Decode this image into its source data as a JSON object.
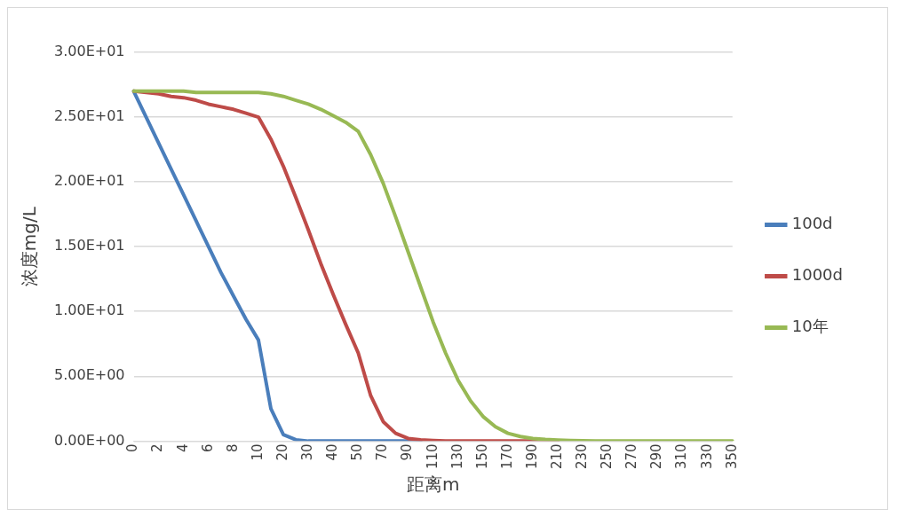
{
  "chart_data": {
    "type": "line",
    "xlabel": "距离m",
    "ylabel": "浓度mg/L",
    "categories": [
      "0",
      null,
      "2",
      null,
      "4",
      null,
      "6",
      null,
      "8",
      null,
      "10",
      null,
      "20",
      null,
      "30",
      null,
      "40",
      null,
      "50",
      null,
      "70",
      null,
      "90",
      null,
      "110",
      null,
      "130",
      null,
      "150",
      null,
      "170",
      null,
      "190",
      null,
      "210",
      null,
      "230",
      null,
      "250",
      null,
      "270",
      null,
      "290",
      null,
      "310",
      null,
      "330",
      null,
      "350"
    ],
    "series": [
      {
        "name": "100d",
        "color": "#4a7ebb",
        "values": [
          27,
          25,
          23,
          21,
          19,
          17,
          15,
          13,
          11.2,
          9.4,
          7.8,
          2.5,
          0.5,
          0.1,
          0,
          0,
          0,
          0,
          0,
          0,
          0,
          0,
          0,
          0,
          null,
          null,
          null,
          null,
          null,
          null,
          null,
          null,
          null,
          null,
          null,
          null,
          null,
          null,
          null,
          null,
          null,
          null,
          null,
          null,
          null,
          null,
          null,
          null,
          null
        ]
      },
      {
        "name": "1000d",
        "color": "#be4b48",
        "values": [
          27,
          26.9,
          26.8,
          26.6,
          26.5,
          26.3,
          26,
          25.8,
          25.6,
          25.3,
          25,
          23.3,
          21.2,
          18.8,
          16.3,
          13.7,
          11.3,
          9,
          6.8,
          3.5,
          1.5,
          0.6,
          0.2,
          0.1,
          0.05,
          0,
          0,
          0,
          0,
          0,
          0,
          0,
          0,
          0,
          0,
          null,
          null,
          null,
          null,
          null,
          null,
          null,
          null,
          null,
          null,
          null,
          null,
          null,
          null
        ]
      },
      {
        "name": "10年",
        "color": "#98b954",
        "values": [
          27,
          27,
          27,
          27,
          27,
          26.9,
          26.9,
          26.9,
          26.9,
          26.9,
          26.9,
          26.8,
          26.6,
          26.3,
          26,
          25.6,
          25.1,
          24.6,
          23.9,
          22.1,
          19.9,
          17.3,
          14.6,
          11.9,
          9.2,
          6.8,
          4.7,
          3.1,
          1.9,
          1.1,
          0.6,
          0.35,
          0.2,
          0.12,
          0.08,
          0.05,
          0.03,
          0,
          0,
          0,
          0,
          0,
          0,
          0,
          0,
          0,
          0,
          0,
          0
        ]
      }
    ],
    "ylim": [
      0,
      30
    ],
    "yticks": [
      {
        "value": 0,
        "label": "0.00E+00"
      },
      {
        "value": 5,
        "label": "5.00E+00"
      },
      {
        "value": 10,
        "label": "1.00E+01"
      },
      {
        "value": 15,
        "label": "1.50E+01"
      },
      {
        "value": 20,
        "label": "2.00E+01"
      },
      {
        "value": 25,
        "label": "2.50E+01"
      },
      {
        "value": 30,
        "label": "3.00E+01"
      }
    ],
    "grid": "y",
    "legend": "right",
    "marker": "none",
    "line_style": "solid"
  }
}
